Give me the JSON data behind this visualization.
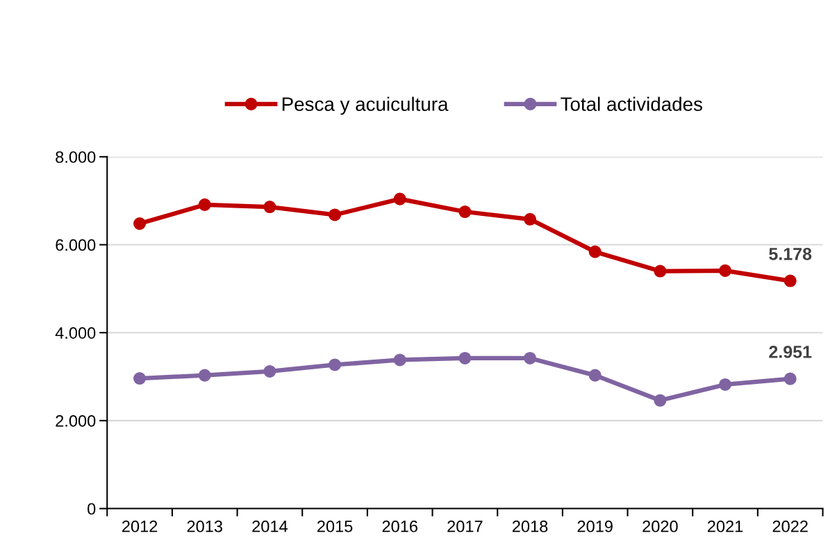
{
  "chart_data": {
    "type": "line",
    "categories": [
      "2012",
      "2013",
      "2014",
      "2015",
      "2016",
      "2017",
      "2018",
      "2019",
      "2020",
      "2021",
      "2022"
    ],
    "series": [
      {
        "name": "Pesca y acuicultura",
        "color": "#c00000",
        "values": [
          6480,
          6910,
          6860,
          6680,
          7040,
          6750,
          6580,
          5840,
          5400,
          5410,
          5178
        ],
        "value_labels": [
          null,
          null,
          null,
          null,
          null,
          null,
          null,
          null,
          null,
          null,
          "5.178"
        ]
      },
      {
        "name": "Total actividades",
        "color": "#8064a2",
        "values": [
          2960,
          3030,
          3120,
          3270,
          3380,
          3420,
          3420,
          3030,
          2460,
          2820,
          2951
        ],
        "value_labels": [
          null,
          null,
          null,
          null,
          null,
          null,
          null,
          null,
          null,
          null,
          "2.951"
        ]
      }
    ],
    "ylim": [
      0,
      8000
    ],
    "yticks": [
      {
        "value": 0,
        "label": "0"
      },
      {
        "value": 2000,
        "label": "2.000"
      },
      {
        "value": 4000,
        "label": "4.000"
      },
      {
        "value": 6000,
        "label": "6.000"
      },
      {
        "value": 8000,
        "label": "8.000"
      }
    ],
    "grid": "y",
    "legend": "top",
    "marker": "circle",
    "line_style": "solid"
  }
}
